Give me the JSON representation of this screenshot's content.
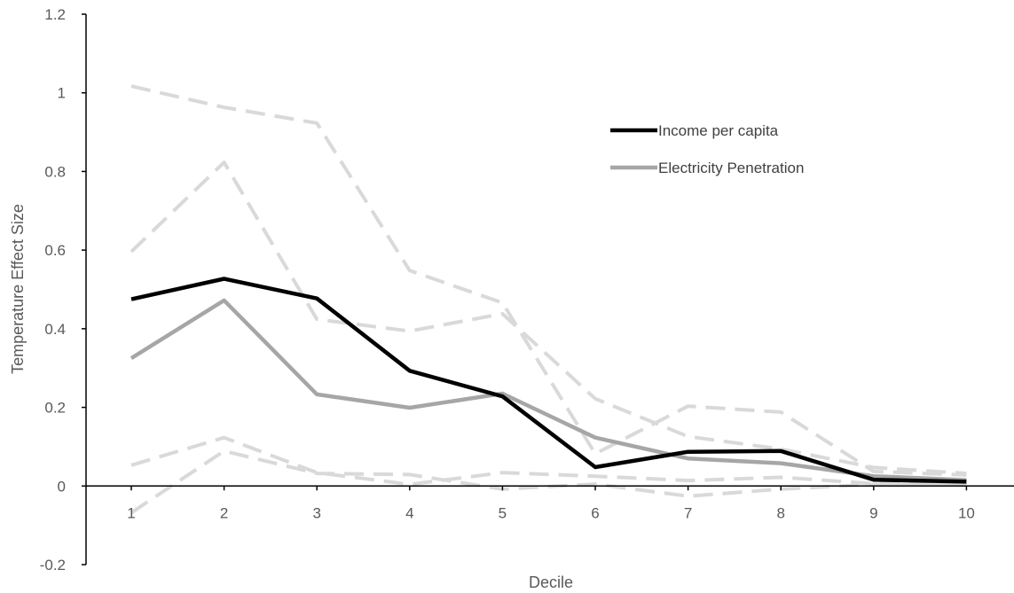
{
  "chart_data": {
    "type": "line",
    "title": "",
    "xlabel": "Decile",
    "ylabel": "Temperature Effect Size",
    "categories": [
      "1",
      "2",
      "3",
      "4",
      "5",
      "6",
      "7",
      "8",
      "9",
      "10"
    ],
    "ylim": [
      -0.2,
      1.2
    ],
    "yticks": [
      "1.2",
      "1",
      "0.8",
      "0.6",
      "0.4",
      "0.2",
      "0",
      "-0.2"
    ],
    "ytick_values": [
      1.2,
      1.0,
      0.8,
      0.6,
      0.4,
      0.2,
      0.0,
      -0.2
    ],
    "legend_position": "top-right",
    "grid": false,
    "series": [
      {
        "name": "Income per capita",
        "color": "#000000",
        "style": "solid",
        "values": [
          0.475,
          0.527,
          0.477,
          0.293,
          0.228,
          0.048,
          0.087,
          0.089,
          0.016,
          0.011
        ]
      },
      {
        "name": "Electricity Penetration",
        "color": "#a6a6a6",
        "style": "solid",
        "values": [
          0.325,
          0.472,
          0.233,
          0.199,
          0.235,
          0.123,
          0.07,
          0.058,
          0.025,
          0.015
        ]
      }
    ],
    "confidence_bands": [
      {
        "color": "#d9d9d9",
        "style": "dashed",
        "values": [
          1.017,
          0.963,
          0.923,
          0.548,
          0.466,
          0.082,
          0.203,
          0.188,
          0.037,
          0.028
        ]
      },
      {
        "color": "#d9d9d9",
        "style": "dashed",
        "values": [
          0.596,
          0.823,
          0.424,
          0.394,
          0.438,
          0.222,
          0.126,
          0.094,
          0.047,
          0.032
        ]
      },
      {
        "color": "#d9d9d9",
        "style": "dashed",
        "values": [
          0.053,
          0.123,
          0.034,
          0.004,
          0.034,
          0.025,
          0.014,
          0.022,
          0.006,
          0.006
        ]
      },
      {
        "color": "#d9d9d9",
        "style": "dashed",
        "values": [
          -0.068,
          0.089,
          0.032,
          0.029,
          -0.008,
          0.005,
          -0.026,
          -0.008,
          0.004,
          0.002
        ]
      }
    ]
  }
}
